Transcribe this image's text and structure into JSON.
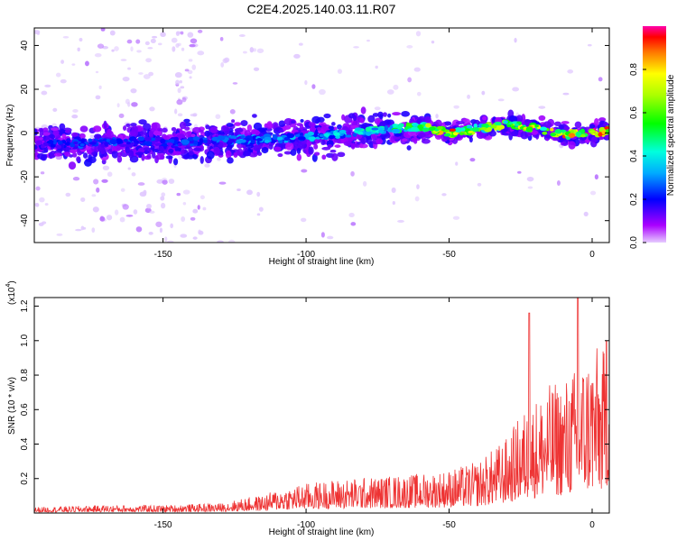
{
  "title": "C2E4.2025.140.03.11.R07",
  "chart_data": [
    {
      "type": "heatmap",
      "xlabel": "Height of straight line (km)",
      "ylabel": "Frequency (Hz)",
      "xlim": [
        -195,
        6
      ],
      "ylim": [
        -50,
        48
      ],
      "xticks": [
        -150,
        -100,
        -50,
        0
      ],
      "yticks": [
        -40,
        -20,
        0,
        20,
        40
      ],
      "ridge": {
        "description": "frequency center of the dominant spectral band vs height",
        "x": [
          -195,
          -180,
          -160,
          -140,
          -120,
          -100,
          -85,
          -70,
          -60,
          -50,
          -40,
          -30,
          -20,
          -10,
          0,
          5
        ],
        "y": [
          -5,
          -5,
          -4,
          -4,
          -3,
          -2,
          0,
          2,
          3,
          0,
          2,
          4,
          2,
          -1,
          0,
          1
        ],
        "amplitude": [
          0.2,
          0.25,
          0.25,
          0.25,
          0.3,
          0.35,
          0.4,
          0.5,
          0.6,
          0.9,
          0.6,
          0.7,
          0.8,
          0.85,
          0.95,
          0.9
        ]
      },
      "colorbar": {
        "label": "Normalized spectral amplitude",
        "range": [
          0,
          1
        ],
        "ticks": [
          0.0,
          0.2,
          0.4,
          0.6,
          0.8
        ]
      }
    },
    {
      "type": "line",
      "xlabel": "Height of straight line (km)",
      "ylabel": "SNR (10 * v/v)",
      "scale_label": "(x10",
      "scale_exp": "4",
      "scale_close": ")",
      "xlim": [
        -195,
        6
      ],
      "ylim": [
        0,
        1.25
      ],
      "xticks": [
        -150,
        -100,
        -50,
        0
      ],
      "yticks": [
        0.2,
        0.4,
        0.6,
        0.8,
        1.0,
        1.2
      ],
      "color": "#ee3333",
      "envelope": {
        "x": [
          -195,
          -170,
          -150,
          -130,
          -120,
          -115,
          -110,
          -100,
          -90,
          -80,
          -70,
          -60,
          -50,
          -40,
          -35,
          -30,
          -25,
          -20,
          -15,
          -10,
          -5,
          0,
          6
        ],
        "y": [
          0.03,
          0.04,
          0.04,
          0.05,
          0.08,
          0.09,
          0.12,
          0.15,
          0.17,
          0.18,
          0.19,
          0.2,
          0.22,
          0.26,
          0.32,
          0.38,
          0.5,
          0.58,
          0.65,
          0.68,
          0.75,
          0.85,
          0.82
        ]
      },
      "peaks": [
        {
          "x": -22,
          "y": 1.16
        },
        {
          "x": -5,
          "y": 1.25
        },
        {
          "x": 5,
          "y": 1.0
        }
      ]
    }
  ]
}
